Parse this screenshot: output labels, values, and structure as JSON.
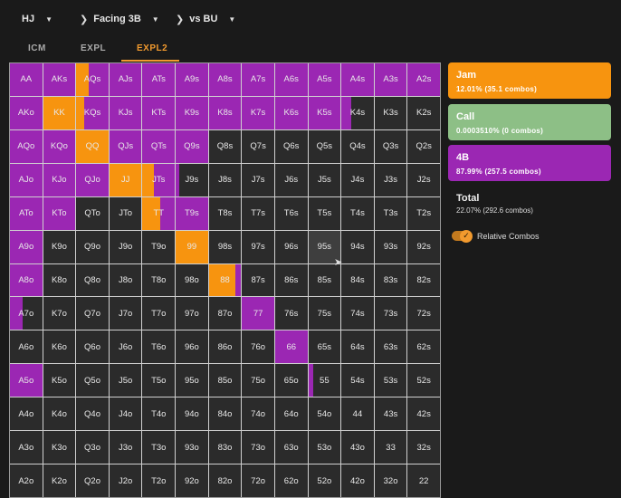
{
  "header": {
    "dropdowns": [
      {
        "label": "HJ",
        "chevron": false
      },
      {
        "label": "Facing 3B",
        "chevron": true
      },
      {
        "label": "vs BU",
        "chevron": true
      }
    ]
  },
  "tabs": [
    {
      "label": "ICM",
      "active": false
    },
    {
      "label": "EXPL",
      "active": false
    },
    {
      "label": "EXPL2",
      "active": true
    }
  ],
  "colors": {
    "jam": "#f7940f",
    "call": "#8dbf86",
    "fourbet": "#9b27b3",
    "fold": "#2b2b2b"
  },
  "actions": [
    {
      "name": "Jam",
      "value": "12.01% (35.1 combos)",
      "color": "#f7940f"
    },
    {
      "name": "Call",
      "value": "0.0003510% (0 combos)",
      "color": "#8dbf86"
    },
    {
      "name": "4B",
      "value": "87.99% (257.5 combos)",
      "color": "#9b27b3"
    }
  ],
  "total": {
    "label": "Total",
    "value": "22.07% (292.6 combos)"
  },
  "toggle": {
    "label": "Relative Combos",
    "on": true
  },
  "hover_cell": "95s",
  "range": {
    "AA": [
      [
        0,
        100,
        "fourbet"
      ]
    ],
    "AKs": [
      [
        0,
        100,
        "fourbet"
      ]
    ],
    "AQs": [
      [
        0,
        40,
        "jam"
      ],
      [
        40,
        100,
        "fourbet"
      ]
    ],
    "AJs": [
      [
        0,
        100,
        "fourbet"
      ]
    ],
    "ATs": [
      [
        0,
        100,
        "fourbet"
      ]
    ],
    "A9s": [
      [
        0,
        100,
        "fourbet"
      ]
    ],
    "A8s": [
      [
        0,
        100,
        "fourbet"
      ]
    ],
    "A7s": [
      [
        0,
        100,
        "fourbet"
      ]
    ],
    "A6s": [
      [
        0,
        100,
        "fourbet"
      ]
    ],
    "A5s": [
      [
        0,
        100,
        "fourbet"
      ]
    ],
    "A4s": [
      [
        0,
        100,
        "fourbet"
      ]
    ],
    "A3s": [
      [
        0,
        100,
        "fourbet"
      ]
    ],
    "A2s": [
      [
        0,
        100,
        "fourbet"
      ]
    ],
    "AKo": [
      [
        0,
        100,
        "fourbet"
      ]
    ],
    "KK": [
      [
        0,
        100,
        "jam"
      ]
    ],
    "KQs": [
      [
        0,
        25,
        "jam"
      ],
      [
        25,
        100,
        "fourbet"
      ]
    ],
    "KJs": [
      [
        0,
        100,
        "fourbet"
      ]
    ],
    "KTs": [
      [
        0,
        100,
        "fourbet"
      ]
    ],
    "K9s": [
      [
        0,
        100,
        "fourbet"
      ]
    ],
    "K8s": [
      [
        0,
        100,
        "fourbet"
      ]
    ],
    "K7s": [
      [
        0,
        100,
        "fourbet"
      ]
    ],
    "K6s": [
      [
        0,
        100,
        "fourbet"
      ]
    ],
    "K5s": [
      [
        0,
        100,
        "fourbet"
      ]
    ],
    "K4s": [
      [
        0,
        30,
        "fourbet"
      ]
    ],
    "AQo": [
      [
        0,
        100,
        "fourbet"
      ]
    ],
    "KQo": [
      [
        0,
        100,
        "fourbet"
      ]
    ],
    "QQ": [
      [
        0,
        100,
        "jam"
      ]
    ],
    "QJs": [
      [
        0,
        100,
        "fourbet"
      ]
    ],
    "QTs": [
      [
        0,
        100,
        "fourbet"
      ]
    ],
    "Q9s": [
      [
        0,
        100,
        "fourbet"
      ]
    ],
    "AJo": [
      [
        0,
        100,
        "fourbet"
      ]
    ],
    "KJo": [
      [
        0,
        100,
        "fourbet"
      ]
    ],
    "QJo": [
      [
        0,
        100,
        "fourbet"
      ]
    ],
    "JJ": [
      [
        0,
        100,
        "jam"
      ]
    ],
    "JTs": [
      [
        0,
        35,
        "jam"
      ],
      [
        35,
        100,
        "fourbet"
      ]
    ],
    "J9s": [
      [
        0,
        10,
        "fourbet"
      ]
    ],
    "ATo": [
      [
        0,
        100,
        "fourbet"
      ]
    ],
    "KTo": [
      [
        0,
        100,
        "fourbet"
      ]
    ],
    "TT": [
      [
        0,
        55,
        "jam"
      ],
      [
        55,
        100,
        "fourbet"
      ]
    ],
    "T9s": [
      [
        0,
        100,
        "fourbet"
      ]
    ],
    "A9o": [
      [
        0,
        100,
        "fourbet"
      ]
    ],
    "99": [
      [
        0,
        100,
        "jam"
      ]
    ],
    "A8o": [
      [
        0,
        100,
        "fourbet"
      ]
    ],
    "88": [
      [
        0,
        82,
        "jam"
      ],
      [
        82,
        100,
        "fourbet"
      ]
    ],
    "A7o": [
      [
        0,
        40,
        "fourbet"
      ]
    ],
    "77": [
      [
        0,
        100,
        "fourbet"
      ]
    ],
    "66": [
      [
        0,
        100,
        "fourbet"
      ]
    ],
    "A5o": [
      [
        0,
        100,
        "fourbet"
      ]
    ],
    "55": [
      [
        0,
        16,
        "fourbet"
      ]
    ]
  }
}
